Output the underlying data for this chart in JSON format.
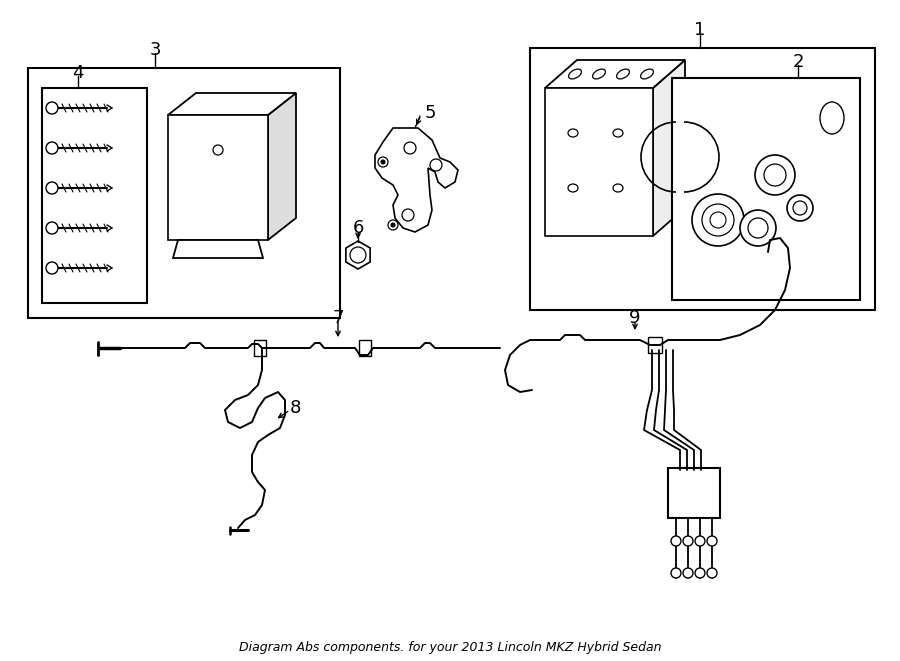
{
  "bg_color": "#ffffff",
  "line_color": "#000000",
  "title": "Diagram Abs components. for your 2013 Lincoln MKZ Hybrid Sedan",
  "title_fontsize": 9,
  "label_fontsize": 13,
  "fig_width": 9.0,
  "fig_height": 6.61,
  "dpi": 100
}
